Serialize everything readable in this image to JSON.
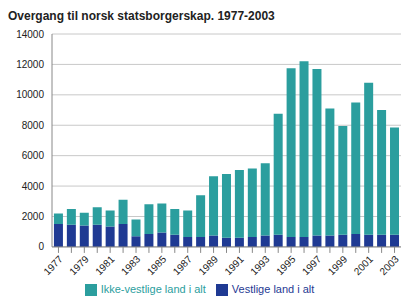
{
  "chart_data": {
    "type": "bar",
    "title": "Overgang til norsk statsborgerskap. 1977-2003",
    "categories": [
      "1977",
      null,
      "1979",
      null,
      "1981",
      null,
      "1983",
      null,
      "1985",
      null,
      "1987",
      null,
      "1989",
      null,
      "1991",
      null,
      "1993",
      null,
      "1995",
      null,
      "1997",
      null,
      "1999",
      null,
      "2001",
      null,
      "2003"
    ],
    "series": [
      {
        "name": "Vestlige land i alt",
        "color": "#1f3a93",
        "values": [
          1500,
          1450,
          1400,
          1450,
          1350,
          1500,
          700,
          850,
          950,
          800,
          650,
          650,
          750,
          600,
          600,
          650,
          750,
          800,
          650,
          650,
          750,
          750,
          800,
          850,
          800,
          800,
          800
        ]
      },
      {
        "name": "Ikke-vestlige land i alt",
        "color": "#2b9e9e",
        "values": [
          700,
          1050,
          850,
          1150,
          1050,
          1600,
          1100,
          1950,
          1900,
          1700,
          1750,
          2750,
          3900,
          4200,
          4450,
          4500,
          4750,
          7950,
          11100,
          11550,
          10950,
          8350,
          7150,
          8650,
          10000,
          8200,
          7050
        ]
      }
    ],
    "stacked": true,
    "ylim": [
      0,
      14000
    ],
    "yticks": [
      0,
      2000,
      4000,
      6000,
      8000,
      10000,
      12000,
      14000
    ],
    "grid": true,
    "legend": "bottom"
  }
}
